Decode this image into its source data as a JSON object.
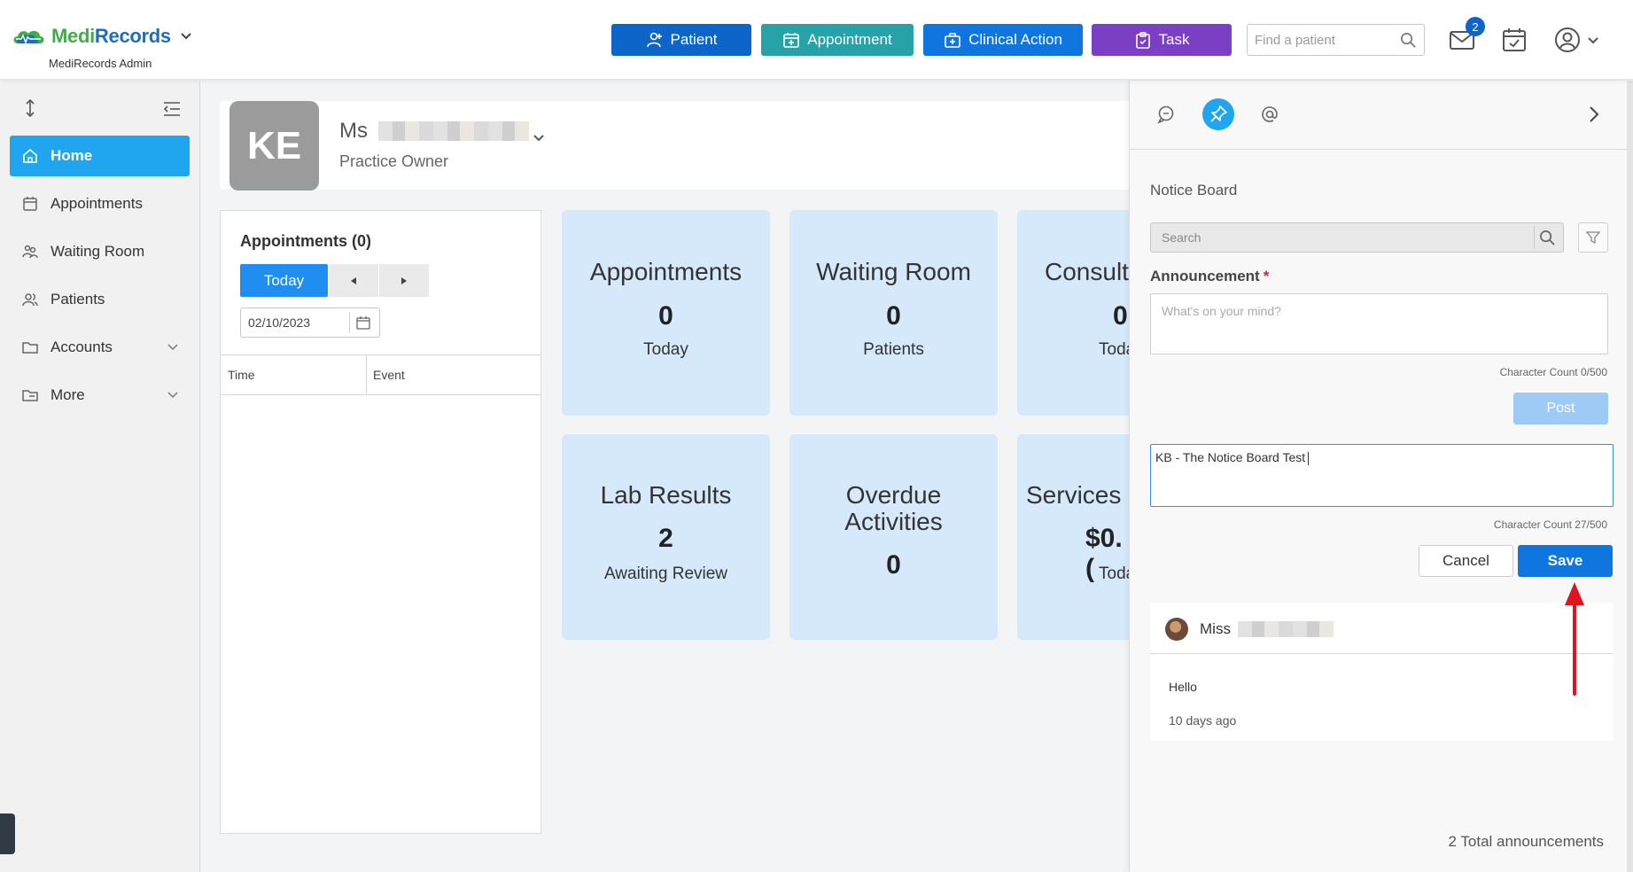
{
  "brand": {
    "name_part1": "Medi",
    "name_part2": "Records",
    "subtitle": "MediRecords Admin",
    "colors": {
      "green": "#3fae49",
      "blue": "#1f6fb8"
    }
  },
  "topbar": {
    "buttons": [
      {
        "label": "Patient",
        "icon": "user-plus-icon",
        "color": "#0d64c9"
      },
      {
        "label": "Appointment",
        "icon": "calendar-plus-icon",
        "color": "#26a2a8"
      },
      {
        "label": "Clinical Action",
        "icon": "medical-kit-icon",
        "color": "#0f76e0"
      },
      {
        "label": "Task",
        "icon": "clipboard-icon",
        "color": "#7b3fc6"
      }
    ],
    "find_placeholder": "Find a patient",
    "mail_badge": "2"
  },
  "sidebar": {
    "items": [
      {
        "label": "Home",
        "icon": "home-icon",
        "active": true
      },
      {
        "label": "Appointments",
        "icon": "calendar-icon"
      },
      {
        "label": "Waiting Room",
        "icon": "people-icon"
      },
      {
        "label": "Patients",
        "icon": "users-icon"
      },
      {
        "label": "Accounts",
        "icon": "folder-icon",
        "expandable": true
      },
      {
        "label": "More",
        "icon": "folder-icon",
        "expandable": true
      }
    ]
  },
  "profile": {
    "initials": "KE",
    "salutation": "Ms",
    "role": "Practice Owner"
  },
  "appointments_panel": {
    "title": "Appointments (0)",
    "today_label": "Today",
    "date": "02/10/2023",
    "columns": [
      "Time",
      "Event"
    ]
  },
  "cards": [
    {
      "title": "Appointments",
      "value": "0",
      "subtitle": "Today"
    },
    {
      "title": "Waiting Room",
      "value": "0",
      "subtitle": "Patients"
    },
    {
      "title": "Consult",
      "value": "0",
      "subtitle": "Toda"
    },
    {
      "title": "Lab Results",
      "value": "2",
      "subtitle": "Awaiting Review"
    },
    {
      "title_line1": "Overdue",
      "title_line2": "Activities",
      "value": "0"
    },
    {
      "title": "Services I",
      "value": "$0.(",
      "subtitle": "Toda"
    }
  ],
  "notice_board": {
    "title": "Notice Board",
    "search_placeholder": "Search",
    "announcement_label": "Announcement",
    "required_mark": "*",
    "announcement_placeholder": "What's on your mind?",
    "char_count_new": "Character Count 0/500",
    "post_label": "Post",
    "edit_text": "KB - The Notice Board Test",
    "char_count_edit": "Character Count 27/500",
    "cancel_label": "Cancel",
    "save_label": "Save",
    "posts": [
      {
        "author": "Miss",
        "body": "Hello",
        "time": "10 days ago"
      }
    ],
    "total": "2 Total announcements"
  }
}
